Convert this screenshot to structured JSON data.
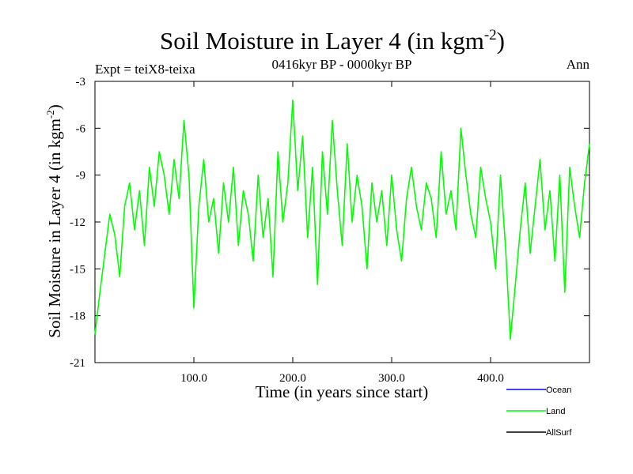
{
  "chart_data": {
    "type": "line",
    "title_main": "Soil Moisture in Layer 4 (in kgm",
    "title_sup": "-2",
    "title_close": ")",
    "subtitle": "0416kyr BP - 0000kyr BP",
    "expt_label": "Expt = teiX8-teixa",
    "season_label": "Ann",
    "xlabel": "Time (in years since start)",
    "ylabel_main": "Soil Moisture in Layer 4 (in kgm",
    "ylabel_sup": "-2",
    "ylabel_close": ")",
    "xlim": [
      0,
      500
    ],
    "ylim": [
      -21,
      -3
    ],
    "x_ticks": [
      {
        "value": 100,
        "label": "100.0"
      },
      {
        "value": 200,
        "label": "200.0"
      },
      {
        "value": 300,
        "label": "300.0"
      },
      {
        "value": 400,
        "label": "400.0"
      }
    ],
    "y_ticks": [
      {
        "value": -3,
        "label": "-3"
      },
      {
        "value": -6,
        "label": "-6"
      },
      {
        "value": -9,
        "label": "-9"
      },
      {
        "value": -12,
        "label": "-12"
      },
      {
        "value": -15,
        "label": "-15"
      },
      {
        "value": -18,
        "label": "-18"
      },
      {
        "value": -21,
        "label": "-21"
      }
    ],
    "legend": [
      {
        "name": "Ocean",
        "color": "#0000ff"
      },
      {
        "name": "Land",
        "color": "#00ff00"
      },
      {
        "name": "AllSurf",
        "color": "#000000"
      }
    ],
    "series": [
      {
        "name": "Land",
        "color": "#00ff00",
        "x": [
          0,
          5,
          10,
          15,
          20,
          25,
          30,
          35,
          40,
          45,
          50,
          55,
          60,
          65,
          70,
          75,
          80,
          85,
          90,
          95,
          100,
          105,
          110,
          115,
          120,
          125,
          130,
          135,
          140,
          145,
          150,
          155,
          160,
          165,
          170,
          175,
          180,
          185,
          190,
          195,
          200,
          205,
          210,
          215,
          220,
          225,
          230,
          235,
          240,
          245,
          250,
          255,
          260,
          265,
          270,
          275,
          280,
          285,
          290,
          295,
          300,
          305,
          310,
          315,
          320,
          325,
          330,
          335,
          340,
          345,
          350,
          355,
          360,
          365,
          370,
          375,
          380,
          385,
          390,
          395,
          400,
          405,
          410,
          415,
          420,
          425,
          430,
          435,
          440,
          445,
          450,
          455,
          460,
          465,
          470,
          475,
          480,
          485,
          490,
          495,
          500
        ],
        "values": [
          -19.2,
          -16.5,
          -14.0,
          -11.5,
          -12.8,
          -15.5,
          -11.0,
          -9.5,
          -12.5,
          -10.0,
          -13.5,
          -8.5,
          -11.0,
          -7.5,
          -9.0,
          -11.5,
          -8.0,
          -10.5,
          -5.5,
          -9.0,
          -17.5,
          -11.0,
          -8.0,
          -12.0,
          -10.5,
          -14.0,
          -9.5,
          -12.0,
          -8.5,
          -13.5,
          -10.0,
          -11.5,
          -14.5,
          -9.0,
          -13.0,
          -10.5,
          -15.5,
          -7.5,
          -12.0,
          -9.5,
          -4.2,
          -10.0,
          -6.5,
          -13.0,
          -8.5,
          -16.0,
          -7.5,
          -11.5,
          -5.5,
          -10.0,
          -13.5,
          -7.0,
          -12.0,
          -9.0,
          -11.0,
          -15.0,
          -9.5,
          -12.0,
          -10.0,
          -13.5,
          -9.0,
          -12.5,
          -14.5,
          -10.5,
          -8.5,
          -11.0,
          -12.5,
          -9.5,
          -10.5,
          -13.0,
          -7.5,
          -11.5,
          -10.0,
          -12.5,
          -6.0,
          -9.0,
          -11.5,
          -13.0,
          -8.5,
          -10.5,
          -12.0,
          -15.0,
          -9.0,
          -13.5,
          -19.5,
          -16.0,
          -12.5,
          -9.5,
          -14.0,
          -11.0,
          -8.0,
          -12.5,
          -10.0,
          -14.5,
          -9.0,
          -16.5,
          -8.5,
          -11.0,
          -13.0,
          -9.5,
          -7.0
        ]
      }
    ]
  }
}
